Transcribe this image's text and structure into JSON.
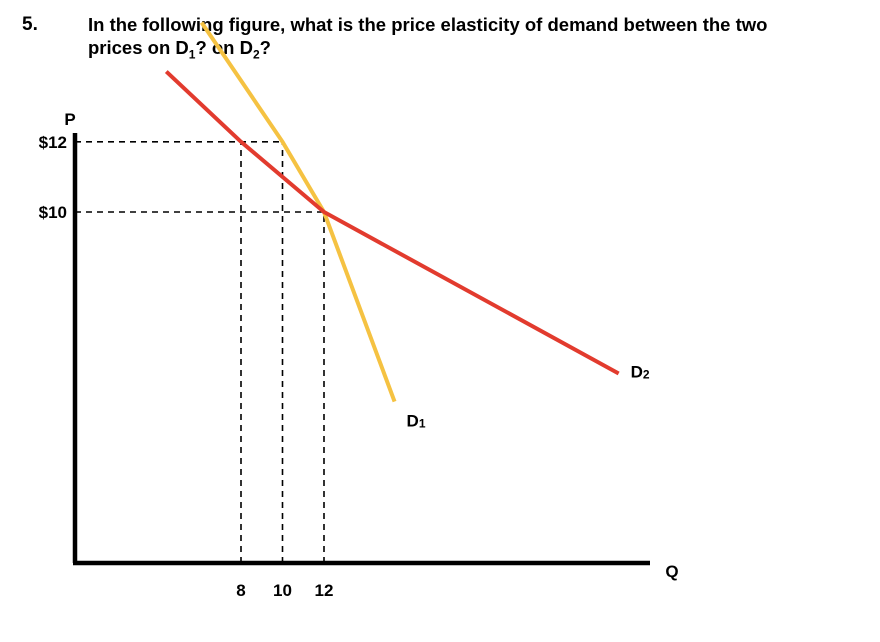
{
  "question": {
    "number": "5.",
    "line1": "In the following figure, what is the price elasticity of demand between the two",
    "line2_before": "prices on D",
    "line2_sub1": "1",
    "line2_mid": "? on D",
    "line2_sub2": "2",
    "line2_after": "?"
  },
  "chart_data": {
    "type": "line",
    "title": "",
    "xlabel": "Q",
    "ylabel": "P",
    "x_ticks": [
      {
        "value": 8,
        "label": "8"
      },
      {
        "value": 10,
        "label": "10"
      },
      {
        "value": 12,
        "label": "12"
      }
    ],
    "y_ticks": [
      {
        "value": 12,
        "label": "$12"
      },
      {
        "value": 10,
        "label": "$10"
      }
    ],
    "grid": false,
    "series": [
      {
        "name": "D1",
        "label_main": "D",
        "label_sub": "1",
        "color": "#f5c242",
        "x": [
          6.1,
          10,
          12,
          15.4
        ],
        "y": [
          15.4,
          12,
          10,
          4.6
        ]
      },
      {
        "name": "D2",
        "label_main": "D",
        "label_sub": "2",
        "color": "#e23b2e",
        "x": [
          4.4,
          8,
          12,
          26.2
        ],
        "y": [
          14.0,
          12,
          10,
          5.4
        ]
      }
    ],
    "guides": [
      {
        "from": [
          0,
          12
        ],
        "to": [
          10,
          12
        ]
      },
      {
        "from": [
          0,
          10
        ],
        "to": [
          12,
          10
        ]
      },
      {
        "from": [
          8,
          0
        ],
        "to": [
          8,
          12
        ]
      },
      {
        "from": [
          10,
          0
        ],
        "to": [
          10,
          12
        ]
      },
      {
        "from": [
          12,
          0
        ],
        "to": [
          12,
          10
        ]
      }
    ]
  }
}
